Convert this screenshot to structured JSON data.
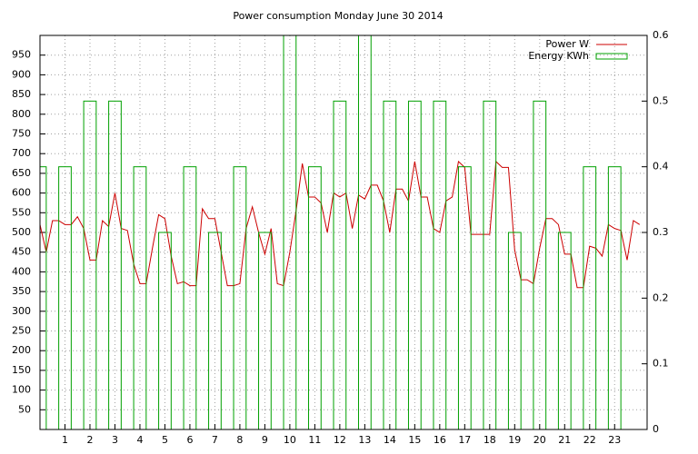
{
  "chart_data": {
    "type": "line",
    "title": "Power consumption Monday June 30 2014",
    "xlim": [
      0,
      24.3
    ],
    "xticks": [
      1,
      2,
      3,
      4,
      5,
      6,
      7,
      8,
      9,
      10,
      11,
      12,
      13,
      14,
      15,
      16,
      17,
      18,
      19,
      20,
      21,
      22,
      23
    ],
    "ylim": [
      0,
      1000
    ],
    "yticks": [
      50,
      100,
      150,
      200,
      250,
      300,
      350,
      400,
      450,
      500,
      550,
      600,
      650,
      700,
      750,
      800,
      850,
      900,
      950
    ],
    "y2lim": [
      0,
      0.6
    ],
    "y2ticks": [
      0,
      0.1,
      0.2,
      0.3,
      0.4,
      0.5,
      0.6
    ],
    "grid": true,
    "legend": "top-right",
    "series": [
      {
        "name": "Power W",
        "color": "#cc0000",
        "type": "line",
        "x": [
          0,
          0.25,
          0.5,
          0.75,
          1,
          1.25,
          1.5,
          1.75,
          2,
          2.25,
          2.5,
          2.75,
          3,
          3.25,
          3.5,
          3.75,
          4,
          4.25,
          4.5,
          4.75,
          5,
          5.25,
          5.5,
          5.75,
          6,
          6.25,
          6.5,
          6.75,
          7,
          7.25,
          7.5,
          7.75,
          8,
          8.25,
          8.5,
          8.75,
          9,
          9.25,
          9.5,
          9.75,
          10,
          10.25,
          10.5,
          10.75,
          11,
          11.25,
          11.5,
          11.75,
          12,
          12.25,
          12.5,
          12.75,
          13,
          13.25,
          13.5,
          13.75,
          14,
          14.25,
          14.5,
          14.75,
          15,
          15.25,
          15.5,
          15.75,
          16,
          16.25,
          16.5,
          16.75,
          17,
          17.25,
          17.5,
          17.75,
          18,
          18.25,
          18.5,
          18.75,
          19,
          19.25,
          19.5,
          19.75,
          20,
          20.25,
          20.5,
          20.75,
          21,
          21.25,
          21.5,
          21.75,
          22,
          22.25,
          22.5,
          22.75,
          23,
          23.25,
          23.5,
          23.75,
          24
        ],
        "values": [
          520,
          450,
          530,
          530,
          520,
          520,
          540,
          510,
          430,
          430,
          530,
          515,
          600,
          510,
          505,
          420,
          370,
          370,
          460,
          545,
          535,
          440,
          370,
          375,
          365,
          365,
          560,
          535,
          535,
          450,
          365,
          365,
          370,
          510,
          565,
          500,
          445,
          510,
          370,
          365,
          450,
          555,
          675,
          590,
          590,
          575,
          500,
          600,
          590,
          600,
          510,
          595,
          585,
          620,
          620,
          580,
          500,
          610,
          610,
          580,
          680,
          590,
          590,
          510,
          500,
          580,
          590,
          680,
          665,
          495,
          495,
          495,
          495,
          680,
          665,
          665,
          455,
          380,
          380,
          370,
          460,
          535,
          535,
          520,
          445,
          445,
          360,
          360,
          465,
          460,
          440,
          520,
          510,
          505,
          430,
          530,
          520
        ]
      },
      {
        "name": "Energy KWh",
        "color": "#00a000",
        "type": "bar",
        "axis": "y2",
        "x": [
          0,
          1,
          2,
          3,
          4,
          5,
          6,
          7,
          8,
          9,
          10,
          11,
          12,
          13,
          14,
          15,
          16,
          17,
          18,
          19,
          20,
          21,
          22,
          23
        ],
        "values": [
          0.4,
          0.4,
          0.5,
          0.5,
          0.4,
          0.3,
          0.4,
          0.3,
          0.4,
          0.3,
          0.6,
          0.4,
          0.5,
          0.6,
          0.5,
          0.5,
          0.5,
          0.4,
          0.5,
          0.3,
          0.5,
          0.3,
          0.4,
          0.4
        ]
      }
    ]
  }
}
